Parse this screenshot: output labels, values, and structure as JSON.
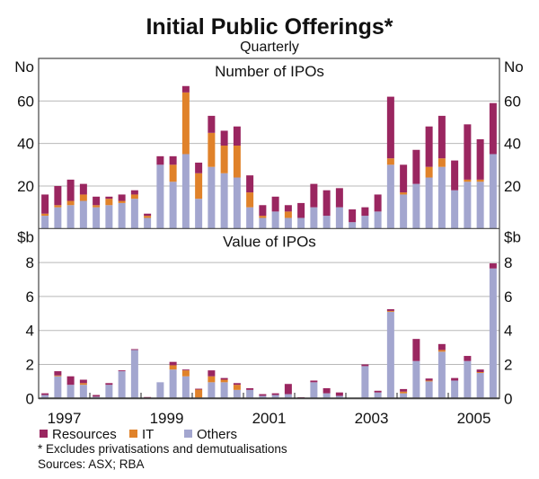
{
  "chart_data": {
    "type": "bar",
    "stacked": true,
    "title": "Initial Public Offerings*",
    "subtitle": "Quarterly",
    "frequency": "quarterly",
    "period": [
      "1997 Q1",
      "2005 Q4"
    ],
    "x_tick_labels": [
      "1997",
      "1999",
      "2001",
      "2003",
      "2005"
    ],
    "legend": {
      "placement": "bottom-left",
      "entries": [
        {
          "name": "Resources",
          "color": "#9a2660"
        },
        {
          "name": "IT",
          "color": "#e0822a"
        },
        {
          "name": "Others",
          "color": "#a3a6cf"
        }
      ]
    },
    "panels": [
      {
        "title": "Number of IPOs",
        "unit_label": "No",
        "ylim": [
          0,
          80
        ],
        "yticks": [
          "20",
          "40",
          "60"
        ],
        "ytick_values": [
          20,
          40,
          60
        ],
        "series": [
          {
            "name": "Others",
            "values": [
              6,
              10,
              11,
              13,
              10,
              11,
              12,
              14,
              5,
              30,
              22,
              35,
              14,
              29,
              26,
              24,
              10,
              5,
              8,
              5,
              5,
              10,
              6,
              10,
              3,
              6,
              8,
              30,
              16,
              21,
              24,
              29,
              18,
              22,
              22,
              35
            ]
          },
          {
            "name": "IT",
            "values": [
              1,
              1,
              2,
              3,
              1,
              3,
              1,
              2,
              1,
              0,
              8,
              29,
              12,
              16,
              13,
              15,
              7,
              1,
              0,
              3,
              0,
              0,
              0,
              0,
              0,
              0,
              0,
              3,
              1,
              0,
              5,
              4,
              0,
              1,
              1,
              0
            ]
          },
          {
            "name": "Resources",
            "values": [
              9,
              9,
              10,
              5,
              4,
              1,
              3,
              2,
              1,
              4,
              4,
              3,
              5,
              8,
              7,
              9,
              8,
              5,
              7,
              3,
              7,
              11,
              12,
              9,
              6,
              4,
              8,
              29,
              13,
              16,
              19,
              20,
              14,
              26,
              19,
              24
            ]
          }
        ]
      },
      {
        "title": "Value of IPOs",
        "unit_label": "$b",
        "ylim": [
          0,
          10
        ],
        "yticks": [
          "0",
          "2",
          "4",
          "6",
          "8"
        ],
        "ytick_values": [
          0,
          2,
          4,
          6,
          8
        ],
        "series": [
          {
            "name": "Others",
            "values": [
              0.2,
              1.3,
              0.8,
              0.8,
              0.1,
              0.8,
              1.6,
              2.85,
              0.02,
              0.95,
              1.7,
              1.3,
              0.02,
              0.95,
              0.95,
              0.5,
              0.5,
              0.15,
              0.2,
              0.25,
              0.02,
              0.95,
              0.3,
              0.15,
              0,
              1.9,
              0.35,
              5.1,
              0.3,
              2.2,
              1.0,
              2.75,
              1.05,
              2.2,
              1.5,
              7.65
            ]
          },
          {
            "name": "IT",
            "values": [
              0,
              0.05,
              0,
              0.1,
              0,
              0,
              0,
              0,
              0,
              0,
              0.25,
              0.35,
              0.5,
              0.35,
              0.15,
              0.3,
              0,
              0,
              0,
              0,
              0,
              0,
              0,
              0,
              0,
              0,
              0,
              0.05,
              0.1,
              0,
              0.05,
              0.1,
              0,
              0,
              0.05,
              0
            ]
          },
          {
            "name": "Resources",
            "values": [
              0.1,
              0.25,
              0.5,
              0.2,
              0.1,
              0.1,
              0.05,
              0.05,
              0.06,
              0,
              0.2,
              0.05,
              0.05,
              0.35,
              0.1,
              0.1,
              0.1,
              0.1,
              0.1,
              0.6,
              0.05,
              0.1,
              0.3,
              0.2,
              0,
              0.1,
              0.1,
              0.1,
              0.15,
              1.3,
              0.12,
              0.35,
              0.15,
              0.3,
              0.15,
              0.3
            ]
          }
        ]
      }
    ],
    "footnote": "*  Excludes privatisations and demutualisations",
    "sources": "Sources: ASX; RBA"
  }
}
